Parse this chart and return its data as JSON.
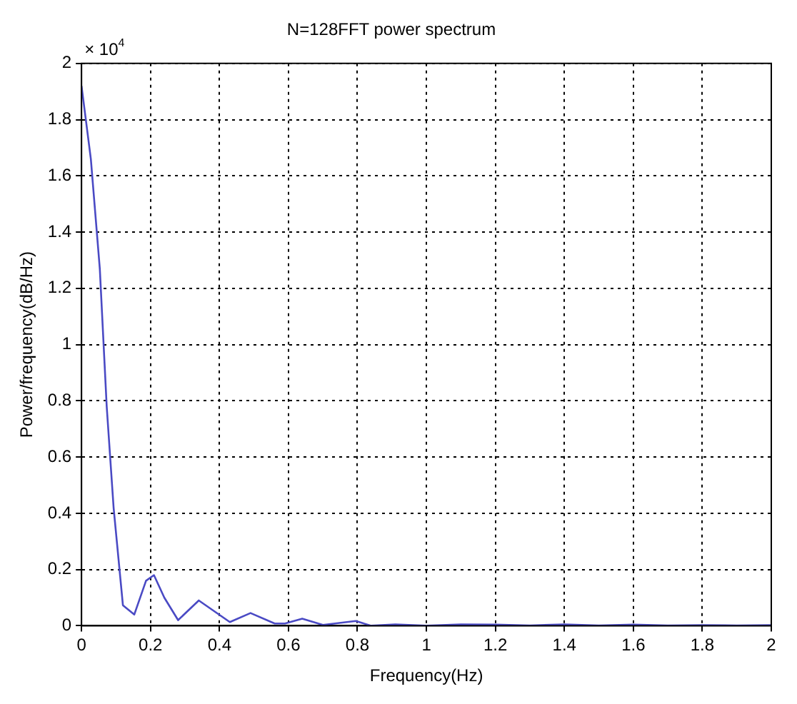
{
  "chart_data": {
    "type": "line",
    "title": "N=128FFT power spectrum",
    "xlabel": "Frequency(Hz)",
    "ylabel": "Power/frequency(dB/Hz)",
    "annotations": [
      "× 10$^{4}$"
    ],
    "series": [
      {
        "color": "#4a4ac4",
        "x": [
          0,
          0.027,
          0.053,
          0.073,
          0.093,
          0.12,
          0.153,
          0.187,
          0.21,
          0.24,
          0.28,
          0.34,
          0.43,
          0.49,
          0.56,
          0.59,
          0.64,
          0.7,
          0.795,
          0.84,
          0.91,
          1.0,
          1.1,
          1.2,
          1.3,
          1.4,
          1.5,
          1.6,
          1.7,
          1.8,
          1.9,
          2.0
        ],
        "values": [
          1.92,
          1.66,
          1.27,
          0.78,
          0.42,
          0.073,
          0.04,
          0.16,
          0.18,
          0.1,
          0.02,
          0.09,
          0.013,
          0.045,
          0.008,
          0.008,
          0.025,
          0.003,
          0.017,
          0.0,
          0.005,
          0.0,
          0.005,
          0.004,
          0.001,
          0.005,
          0.001,
          0.004,
          0.001,
          0.002,
          0.001,
          0.002
        ]
      }
    ],
    "xlim": [
      0,
      2
    ],
    "xticks": [
      0,
      0.2,
      0.4,
      0.6,
      0.8,
      1,
      1.2,
      1.4,
      1.6,
      1.8,
      2
    ],
    "ylim": [
      0,
      2
    ],
    "yticks": [
      0,
      0.2,
      0.4,
      0.6,
      0.8,
      1,
      1.2,
      1.4,
      1.6,
      1.8,
      2
    ],
    "grid": true,
    "legend": false,
    "marker": "none",
    "line_style": "solid"
  }
}
